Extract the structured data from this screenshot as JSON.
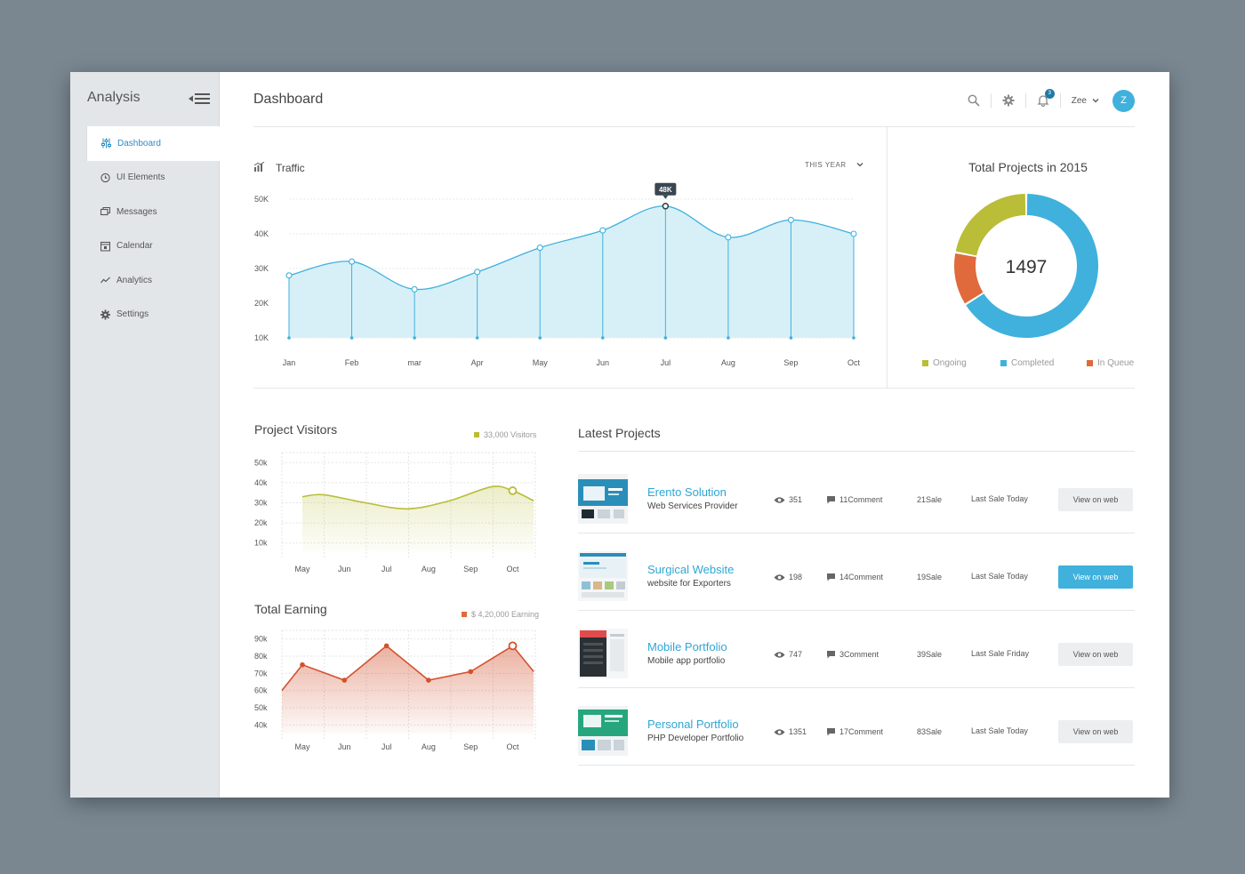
{
  "app": {
    "title": "Analysis"
  },
  "sidebar": {
    "items": [
      {
        "label": "Dashboard",
        "icon": "sliders-icon",
        "active": true
      },
      {
        "label": "UI Elements",
        "icon": "clock-icon",
        "active": false
      },
      {
        "label": "Messages",
        "icon": "messages-icon",
        "active": false
      },
      {
        "label": "Calendar",
        "icon": "calendar-icon",
        "active": false
      },
      {
        "label": "Analytics",
        "icon": "analytics-icon",
        "active": false
      },
      {
        "label": "Settings",
        "icon": "gear-icon",
        "active": false
      }
    ]
  },
  "header": {
    "title": "Dashboard",
    "notification_count": "3",
    "user_name": "Zee",
    "avatar_initial": "Z"
  },
  "colors": {
    "accent": "#3fb1dc",
    "traffic_fill": "#d7f0f8",
    "ongoing": "#b9bd37",
    "completed": "#3fb1dc",
    "in_queue": "#e06a3b",
    "visitors": "#b9bd37",
    "earning": "#d2522e"
  },
  "traffic": {
    "title": "Traffic",
    "range_label": "THIS YEAR",
    "tooltip": "48K"
  },
  "projects_total": {
    "title": "Total Projects in 2015",
    "value": "1497",
    "legend": [
      "Ongoing",
      "Completed",
      "In Queue"
    ]
  },
  "visitors": {
    "title": "Project Visitors",
    "legend": "33,000 Visitors"
  },
  "earning": {
    "title": "Total Earning",
    "legend": "$ 4,20,000 Earning"
  },
  "latest_projects": {
    "title": "Latest Projects",
    "rows": [
      {
        "name": "Erento Solution",
        "subtitle": "Web Services Provider",
        "views": "351",
        "comments": "11Comment",
        "sales": "21Sale",
        "last_sale": "Last Sale Today",
        "button": "View on web",
        "highlight": false
      },
      {
        "name": "Surgical Website",
        "subtitle": "website for Exporters",
        "views": "198",
        "comments": "14Comment",
        "sales": "19Sale",
        "last_sale": "Last Sale Today",
        "button": "View on web",
        "highlight": true
      },
      {
        "name": "Mobile Portfolio",
        "subtitle": "Mobile app portfolio",
        "views": "747",
        "comments": "3Comment",
        "sales": "39Sale",
        "last_sale": "Last Sale Friday",
        "button": "View on web",
        "highlight": false
      },
      {
        "name": "Personal Portfolio",
        "subtitle": "PHP Developer Portfolio",
        "views": "1351",
        "comments": "17Comment",
        "sales": "83Sale",
        "last_sale": "Last Sale Today",
        "button": "View on web",
        "highlight": false
      }
    ]
  },
  "chart_data": [
    {
      "type": "area",
      "title": "Traffic",
      "categories": [
        "Jan",
        "Feb",
        "mar",
        "Apr",
        "May",
        "Jun",
        "Jul",
        "Aug",
        "Sep",
        "Oct"
      ],
      "values": [
        28,
        32,
        24,
        29,
        36,
        41,
        48,
        39,
        44,
        40
      ],
      "unit": "K",
      "yticks": [
        "10K",
        "20K",
        "30K",
        "40K",
        "50K"
      ],
      "ylim": [
        10,
        50
      ],
      "highlight_index": 6
    },
    {
      "type": "pie",
      "title": "Total Projects in 2015",
      "center_label": "1497",
      "slices": [
        {
          "name": "Ongoing",
          "value": 22
        },
        {
          "name": "Completed",
          "value": 66
        },
        {
          "name": "In Queue",
          "value": 12
        }
      ]
    },
    {
      "type": "area",
      "title": "Project Visitors",
      "categories": [
        "May",
        "Jun",
        "Jul",
        "Aug",
        "Sep",
        "Oct"
      ],
      "x": [
        0,
        0.5,
        1.5,
        2.5,
        3.5,
        4.5,
        5,
        5.5
      ],
      "values": [
        33,
        34,
        30,
        27,
        31,
        38,
        36,
        31
      ],
      "yticks": [
        "10k",
        "20k",
        "30k",
        "40k",
        "50k"
      ],
      "ylim": [
        5,
        55
      ],
      "highlight_index": 6,
      "legend": "33,000 Visitors"
    },
    {
      "type": "area",
      "title": "Total Earning",
      "categories": [
        "May",
        "Jun",
        "Jul",
        "Aug",
        "Sep",
        "Oct"
      ],
      "x": [
        -0.5,
        0,
        1,
        2,
        3,
        4,
        5,
        5.5
      ],
      "values": [
        60,
        75,
        66,
        86,
        66,
        71,
        86,
        71
      ],
      "yticks": [
        "40k",
        "50k",
        "60k",
        "70k",
        "80k",
        "90k"
      ],
      "ylim": [
        35,
        95
      ],
      "highlight_index": 6,
      "legend": "$ 4,20,000 Earning"
    }
  ]
}
